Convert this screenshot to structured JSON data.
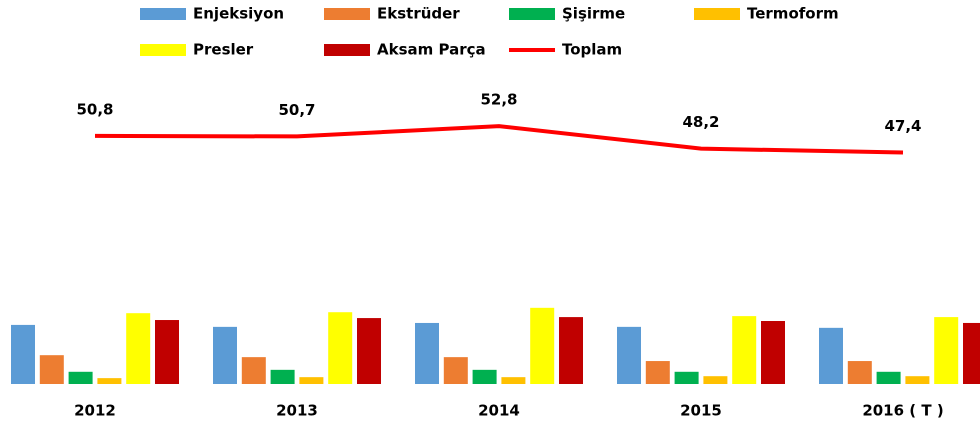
{
  "chart_data": {
    "type": "bar",
    "categories": [
      "2012",
      "2013",
      "2014",
      "2015",
      "2016 ( T )"
    ],
    "ylim": [
      0,
      60
    ],
    "series": [
      {
        "name": "Enjeksiyon",
        "color": "#5b9bd5",
        "values": [
          12.1,
          11.7,
          12.5,
          11.7,
          11.5
        ]
      },
      {
        "name": "Ekstrüder",
        "color": "#ed7d31",
        "values": [
          5.9,
          5.5,
          5.5,
          4.7,
          4.7
        ]
      },
      {
        "name": "Şişirme",
        "color": "#00b050",
        "values": [
          2.5,
          2.9,
          2.9,
          2.5,
          2.5
        ]
      },
      {
        "name": "Termoform",
        "color": "#ffc000",
        "values": [
          1.2,
          1.4,
          1.4,
          1.6,
          1.6
        ]
      },
      {
        "name": "Presler",
        "color": "#ffff00",
        "values": [
          14.5,
          14.7,
          15.6,
          13.9,
          13.7
        ]
      },
      {
        "name": "Aksam Parça",
        "color": "#c00000",
        "values": [
          13.1,
          13.5,
          13.7,
          12.9,
          12.5
        ]
      },
      {
        "name": "Toplam",
        "color": "#ff0000",
        "type": "line",
        "values": [
          50.8,
          50.7,
          52.8,
          48.2,
          47.4
        ],
        "value_labels": [
          "50,8",
          "50,7",
          "52,8",
          "48,2",
          "47,4"
        ]
      }
    ]
  }
}
